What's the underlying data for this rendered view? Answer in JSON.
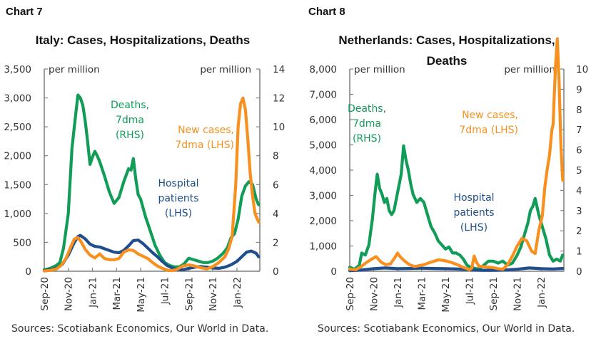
{
  "charts": [
    {
      "label": "Chart 7",
      "sources": "Sources: Scotiabank Economics, Our World in Data."
    },
    {
      "label": "Chart 8",
      "sources": "Sources: Scotiabank Economics, Our World in Data."
    }
  ],
  "colors": {
    "deaths": "#119D58",
    "cases": "#F7901E",
    "hospital": "#1F4E8C",
    "axis": "#7f7f7f",
    "text": "#333333"
  },
  "chart_data": [
    {
      "type": "line",
      "title": "Italy: Cases, Hospitalizations, Deaths",
      "ylabel_left": "per million",
      "ylabel_right": "per million",
      "ylim_left": [
        0,
        3500
      ],
      "ylim_right": [
        0,
        14
      ],
      "yticks_left": [
        "0",
        "500",
        "1,000",
        "1,500",
        "2,000",
        "2,500",
        "3,000",
        "3,500"
      ],
      "yticks_right": [
        "0",
        "2",
        "4",
        "6",
        "8",
        "10",
        "12",
        "14"
      ],
      "xticks": [
        "Sep-20",
        "Nov-20",
        "Jan-21",
        "Mar-21",
        "May-21",
        "Jul-21",
        "Sep-21",
        "Nov-21",
        "Jan-22"
      ],
      "x_unit": "months since Sep-20",
      "xlim": [
        0,
        17.9
      ],
      "grid": false,
      "annotations": [
        {
          "text": [
            "Deaths,",
            "7dma",
            "(RHS)"
          ],
          "series": "deaths"
        },
        {
          "text": [
            "New cases,",
            "7dma (LHS)"
          ],
          "series": "cases"
        },
        {
          "text": [
            "Hospital",
            "patients",
            "(LHS)"
          ],
          "series": "hospital"
        }
      ],
      "series": [
        {
          "name": "Deaths, 7dma (RHS)",
          "key": "deaths",
          "axis": "right",
          "x": [
            0,
            0.5,
            1,
            1.3,
            1.6,
            2.0,
            2.3,
            2.6,
            2.8,
            3.0,
            3.2,
            3.4,
            3.6,
            3.8,
            4.0,
            4.2,
            4.4,
            4.6,
            5.0,
            5.4,
            5.8,
            6.2,
            6.6,
            7.0,
            7.2,
            7.4,
            7.6,
            7.8,
            8.0,
            8.4,
            8.8,
            9.2,
            9.6,
            10.0,
            10.4,
            10.8,
            11.2,
            11.6,
            12.0,
            12.4,
            12.8,
            13.2,
            13.6,
            14.0,
            14.4,
            14.8,
            15.2,
            15.5,
            15.8,
            16.1,
            16.4,
            16.7,
            17.0,
            17.3,
            17.6,
            17.8
          ],
          "values": [
            0.1,
            0.2,
            0.4,
            0.6,
            1.6,
            4.0,
            8.5,
            10.8,
            12.2,
            12.0,
            11.5,
            10.4,
            9.0,
            7.4,
            7.9,
            8.3,
            8.0,
            7.6,
            6.6,
            5.5,
            4.7,
            5.1,
            6.2,
            7.1,
            7.0,
            7.8,
            6.4,
            5.3,
            5.0,
            3.8,
            2.8,
            1.8,
            1.1,
            0.6,
            0.4,
            0.3,
            0.3,
            0.5,
            0.9,
            0.8,
            0.7,
            0.6,
            0.6,
            0.7,
            0.9,
            1.2,
            1.6,
            2.3,
            2.6,
            3.6,
            5.2,
            5.9,
            6.2,
            6.0,
            5.0,
            4.6
          ]
        },
        {
          "name": "Hospital patients (LHS)",
          "key": "hospital",
          "axis": "left",
          "x": [
            0,
            0.5,
            1,
            1.5,
            2.0,
            2.5,
            2.8,
            3.0,
            3.4,
            3.8,
            4.2,
            4.6,
            5.0,
            5.4,
            5.8,
            6.2,
            6.6,
            7.0,
            7.4,
            7.8,
            8.2,
            8.6,
            9.0,
            9.4,
            9.8,
            10.2,
            10.6,
            11.0,
            11.5,
            12.0,
            12.5,
            13.0,
            13.5,
            14.0,
            14.5,
            15.0,
            15.5,
            16.0,
            16.4,
            16.8,
            17.2,
            17.6,
            17.8
          ],
          "values": [
            15,
            25,
            50,
            120,
            280,
            500,
            600,
            620,
            560,
            470,
            430,
            420,
            390,
            360,
            330,
            320,
            360,
            440,
            530,
            540,
            480,
            400,
            320,
            250,
            170,
            100,
            60,
            30,
            25,
            50,
            70,
            80,
            70,
            55,
            50,
            70,
            110,
            170,
            250,
            330,
            350,
            310,
            250
          ]
        },
        {
          "name": "New cases, 7dma (LHS)",
          "key": "cases",
          "axis": "left",
          "x": [
            0,
            0.5,
            1,
            1.4,
            1.8,
            2.2,
            2.5,
            2.8,
            3.0,
            3.4,
            3.8,
            4.2,
            4.6,
            5.0,
            5.4,
            5.8,
            6.2,
            6.6,
            7.0,
            7.4,
            7.8,
            8.2,
            8.6,
            9.0,
            9.4,
            9.8,
            10.2,
            10.6,
            11.0,
            11.5,
            12.0,
            12.5,
            13.0,
            13.5,
            14.0,
            14.5,
            15.0,
            15.3,
            15.6,
            15.9,
            16.1,
            16.3,
            16.5,
            16.7,
            16.9,
            17.1,
            17.3,
            17.5,
            17.8
          ],
          "values": [
            5,
            15,
            40,
            100,
            220,
            420,
            560,
            580,
            530,
            380,
            280,
            230,
            300,
            220,
            200,
            200,
            220,
            330,
            370,
            360,
            300,
            260,
            220,
            150,
            90,
            50,
            20,
            10,
            30,
            90,
            110,
            90,
            60,
            40,
            80,
            150,
            250,
            380,
            600,
            1500,
            2500,
            2900,
            3000,
            2800,
            2300,
            1700,
            1300,
            1000,
            850
          ]
        }
      ]
    },
    {
      "type": "line",
      "title": "Netherlands: Cases, Hospitalizations, Deaths",
      "ylabel_left": "per million",
      "ylabel_right": "per million",
      "ylim_left": [
        0,
        8000
      ],
      "ylim_right": [
        0,
        10
      ],
      "yticks_left": [
        "0",
        "1,000",
        "2,000",
        "3,000",
        "4,000",
        "5,000",
        "6,000",
        "7,000",
        "8,000"
      ],
      "yticks_right": [
        "0",
        "1",
        "2",
        "3",
        "4",
        "5",
        "6",
        "7",
        "8",
        "9",
        "10"
      ],
      "xticks": [
        "Sep-20",
        "Nov-20",
        "Jan-21",
        "Mar-21",
        "May-21",
        "Jul-21",
        "Sep-21",
        "Nov-21",
        "Jan-22"
      ],
      "x_unit": "months since Sep-20",
      "xlim": [
        0,
        17.9
      ],
      "grid": false,
      "annotations": [
        {
          "text": [
            "Deaths,",
            "7dma",
            "(RHS)"
          ],
          "series": "deaths"
        },
        {
          "text": [
            "New cases,",
            "7dma (LHS)"
          ],
          "series": "cases"
        },
        {
          "text": [
            "Hospital",
            "patients",
            "(LHS)"
          ],
          "series": "hospital"
        }
      ],
      "series": [
        {
          "name": "Deaths, 7dma (RHS)",
          "key": "deaths",
          "axis": "right",
          "x": [
            0,
            0.4,
            0.8,
            1.0,
            1.3,
            1.6,
            1.9,
            2.1,
            2.3,
            2.5,
            2.7,
            2.9,
            3.1,
            3.3,
            3.5,
            3.7,
            3.9,
            4.1,
            4.3,
            4.5,
            4.7,
            4.9,
            5.1,
            5.3,
            5.6,
            5.9,
            6.2,
            6.5,
            6.8,
            7.1,
            7.4,
            7.7,
            8.0,
            8.3,
            8.6,
            8.9,
            9.2,
            9.5,
            9.8,
            10.1,
            10.4,
            10.8,
            11.2,
            11.6,
            12.0,
            12.4,
            12.8,
            13.2,
            13.6,
            14.0,
            14.3,
            14.6,
            14.9,
            15.1,
            15.3,
            15.5,
            15.8,
            16.1,
            16.4,
            16.7,
            17.0,
            17.3,
            17.6,
            17.8
          ],
          "values": [
            0.2,
            0.1,
            0.3,
            0.9,
            0.8,
            1.3,
            2.6,
            3.8,
            4.8,
            4.1,
            3.8,
            3.4,
            3.6,
            3.0,
            2.8,
            3.0,
            3.6,
            4.2,
            4.8,
            6.2,
            5.5,
            5.0,
            4.3,
            3.8,
            3.4,
            3.6,
            3.4,
            2.8,
            2.2,
            1.9,
            1.5,
            1.3,
            1.1,
            1.2,
            0.9,
            0.9,
            0.8,
            0.6,
            0.3,
            0.2,
            0.15,
            0.1,
            0.3,
            0.5,
            0.5,
            0.4,
            0.5,
            0.3,
            0.4,
            0.8,
            1.2,
            1.8,
            2.4,
            3.0,
            3.2,
            3.6,
            2.8,
            2.2,
            1.6,
            0.8,
            0.5,
            0.6,
            0.5,
            0.8
          ]
        },
        {
          "name": "Hospital patients (LHS)",
          "key": "hospital",
          "axis": "left",
          "x": [
            0,
            1,
            2,
            3,
            4,
            5,
            6,
            7,
            8,
            9,
            10,
            11,
            12,
            13,
            14,
            15,
            16,
            17,
            17.8
          ],
          "values": [
            20,
            50,
            100,
            130,
            100,
            110,
            120,
            110,
            100,
            90,
            60,
            40,
            40,
            50,
            80,
            130,
            100,
            90,
            110
          ]
        },
        {
          "name": "New cases, 7dma (LHS)",
          "key": "cases",
          "axis": "left",
          "x": [
            0,
            0.5,
            1.0,
            1.4,
            1.8,
            2.2,
            2.6,
            3.0,
            3.4,
            3.8,
            4.0,
            4.2,
            4.6,
            5.0,
            5.4,
            5.8,
            6.2,
            6.6,
            7.0,
            7.4,
            7.8,
            8.2,
            8.6,
            9.0,
            9.4,
            9.8,
            10.0,
            10.2,
            10.4,
            10.6,
            10.8,
            11.2,
            11.6,
            12.0,
            12.4,
            12.8,
            13.2,
            13.6,
            14.0,
            14.4,
            14.8,
            15.0,
            15.2,
            15.5,
            15.8,
            16.1,
            16.3,
            16.5,
            16.7,
            16.9,
            17.0,
            17.1,
            17.2,
            17.35,
            17.5,
            17.65,
            17.8
          ],
          "values": [
            80,
            60,
            200,
            350,
            470,
            580,
            370,
            260,
            290,
            560,
            720,
            580,
            400,
            260,
            190,
            220,
            260,
            330,
            390,
            450,
            430,
            390,
            330,
            260,
            170,
            100,
            60,
            120,
            600,
            350,
            200,
            180,
            160,
            140,
            100,
            80,
            260,
            600,
            1000,
            1300,
            1200,
            1000,
            800,
            700,
            1600,
            2200,
            3300,
            4000,
            4600,
            5600,
            5800,
            7000,
            8100,
            9200,
            7500,
            5000,
            3600
          ]
        }
      ]
    }
  ]
}
